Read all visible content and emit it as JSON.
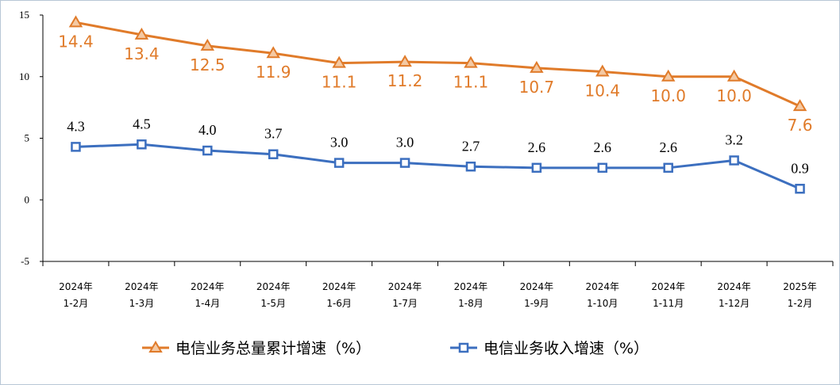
{
  "chart_data": {
    "type": "line",
    "categories": [
      [
        "2024年",
        "1-2月"
      ],
      [
        "2024年",
        "1-3月"
      ],
      [
        "2024年",
        "1-4月"
      ],
      [
        "2024年",
        "1-5月"
      ],
      [
        "2024年",
        "1-6月"
      ],
      [
        "2024年",
        "1-7月"
      ],
      [
        "2024年",
        "1-8月"
      ],
      [
        "2024年",
        "1-9月"
      ],
      [
        "2024年",
        "1-10月"
      ],
      [
        "2024年",
        "1-11月"
      ],
      [
        "2024年",
        "1-12月"
      ],
      [
        "2025年",
        "1-2月"
      ]
    ],
    "series": [
      {
        "name": "电信业务总量累计增速（%）",
        "color": "#e07b2a",
        "marker": "triangle",
        "values": [
          14.4,
          13.4,
          12.5,
          11.9,
          11.1,
          11.2,
          11.1,
          10.7,
          10.4,
          10.0,
          10.0,
          7.6
        ],
        "labels": [
          "14.4",
          "13.4",
          "12.5",
          "11.9",
          "11.1",
          "11.2",
          "11.1",
          "10.7",
          "10.4",
          "10.0",
          "10.0",
          "7.6"
        ]
      },
      {
        "name": "电信业务收入增速（%）",
        "color": "#3c6fbf",
        "marker": "square",
        "values": [
          4.3,
          4.5,
          4.0,
          3.7,
          3.0,
          3.0,
          2.7,
          2.6,
          2.6,
          2.6,
          3.2,
          0.9
        ],
        "labels": [
          "4.3",
          "4.5",
          "4.0",
          "3.7",
          "3.0",
          "3.0",
          "2.7",
          "2.6",
          "2.6",
          "2.6",
          "3.2",
          "0.9"
        ]
      }
    ],
    "ylim": [
      -5,
      15
    ],
    "yticks": [
      15,
      10,
      5,
      0,
      -5
    ],
    "legend_position": "bottom",
    "grid": false
  }
}
